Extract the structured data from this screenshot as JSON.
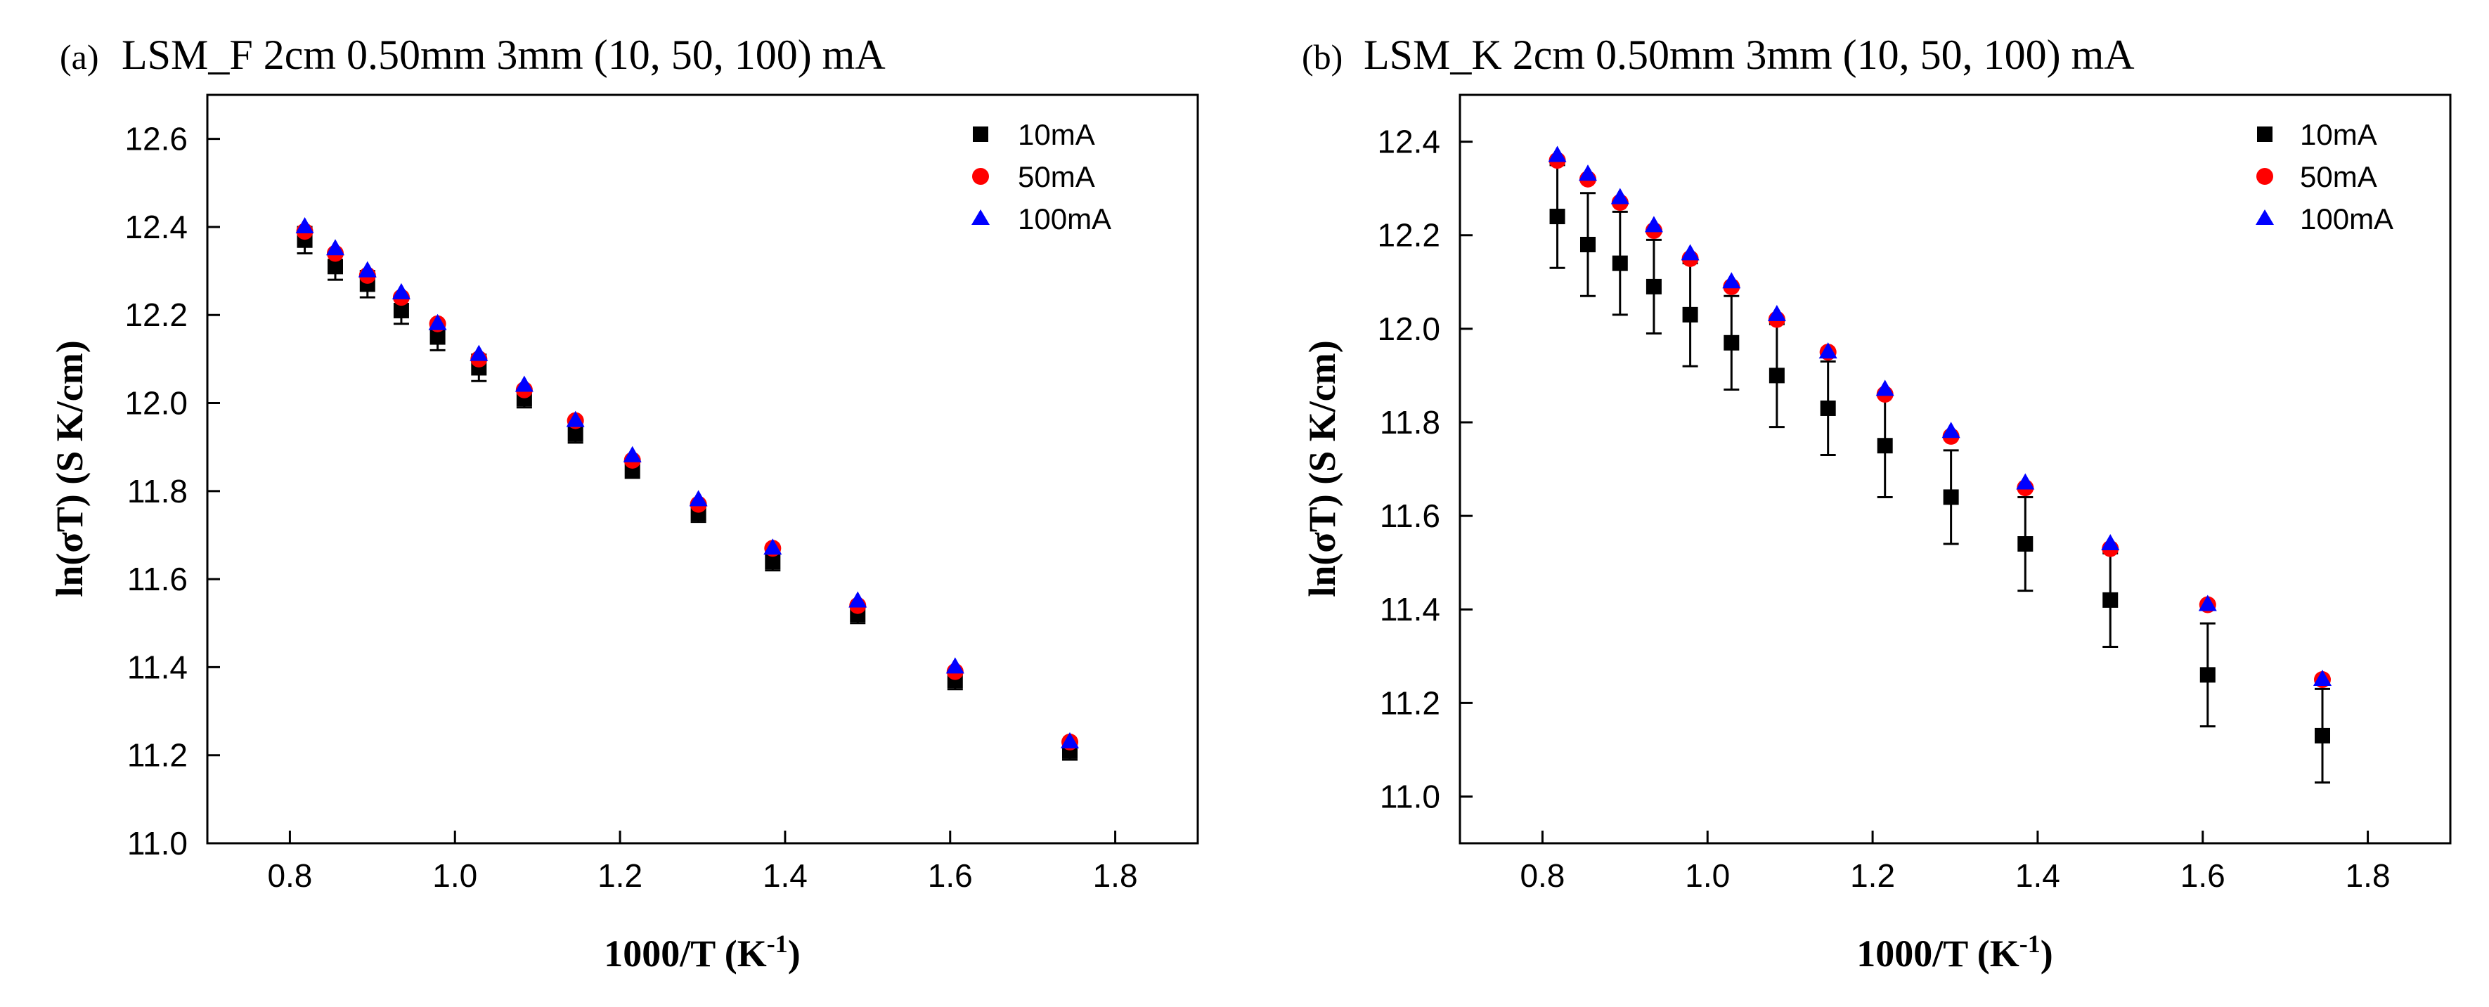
{
  "chart_data": [
    {
      "type": "scatter",
      "panel_label": "(a)",
      "title": "LSM_F 2cm 0.50mm 3mm (10, 50, 100) mA",
      "xlabel": "1000/T (K",
      "xlabel_sup": "-1",
      "xlabel_end": ")",
      "ylabel": "ln(σT) (S K/cm)",
      "xlim": [
        0.7,
        1.9
      ],
      "ylim": [
        11.0,
        12.7
      ],
      "xticks": [
        0.8,
        1.0,
        1.2,
        1.4,
        1.6,
        1.8
      ],
      "xtick_labels": [
        "0.8",
        "1.0",
        "1.2",
        "1.4",
        "1.6",
        "1.8"
      ],
      "yticks": [
        11.0,
        11.2,
        11.4,
        11.6,
        11.8,
        12.0,
        12.2,
        12.4,
        12.6
      ],
      "ytick_labels": [
        "11.0",
        "11.2",
        "11.4",
        "11.6",
        "11.8",
        "12.0",
        "12.2",
        "12.4",
        "12.6"
      ],
      "legend_position": "top-right",
      "x": [
        0.818,
        0.855,
        0.894,
        0.935,
        0.979,
        1.029,
        1.084,
        1.146,
        1.215,
        1.295,
        1.385,
        1.488,
        1.606,
        1.745
      ],
      "series": [
        {
          "name": "10mA",
          "marker": "square",
          "color": "#000000",
          "values": [
            12.37,
            12.31,
            12.27,
            12.21,
            12.15,
            12.08,
            12.01,
            11.93,
            11.85,
            11.75,
            11.64,
            11.52,
            11.37,
            11.21
          ],
          "errors": [
            0.03,
            0.03,
            0.03,
            0.03,
            0.03,
            0.03,
            0.02,
            0.02,
            0.02,
            0.02,
            0.02,
            0.02,
            0.02,
            0.02
          ]
        },
        {
          "name": "50mA",
          "marker": "circle",
          "color": "#ff0000",
          "values": [
            12.39,
            12.34,
            12.29,
            12.24,
            12.18,
            12.1,
            12.03,
            11.96,
            11.87,
            11.77,
            11.67,
            11.54,
            11.39,
            11.23
          ],
          "errors": []
        },
        {
          "name": "100mA",
          "marker": "triangle",
          "color": "#0000ff",
          "values": [
            12.4,
            12.35,
            12.3,
            12.25,
            12.18,
            12.11,
            12.04,
            11.96,
            11.88,
            11.78,
            11.67,
            11.55,
            11.4,
            11.23
          ],
          "errors": []
        }
      ]
    },
    {
      "type": "scatter",
      "panel_label": "(b)",
      "title": "LSM_K 2cm 0.50mm 3mm (10, 50, 100) mA",
      "xlabel": "1000/T (K",
      "xlabel_sup": "-1",
      "xlabel_end": ")",
      "ylabel": "ln(σT) (S K/cm)",
      "xlim": [
        0.7,
        1.9
      ],
      "ylim": [
        10.9,
        12.5
      ],
      "xticks": [
        0.8,
        1.0,
        1.2,
        1.4,
        1.6,
        1.8
      ],
      "xtick_labels": [
        "0.8",
        "1.0",
        "1.2",
        "1.4",
        "1.6",
        "1.8"
      ],
      "yticks": [
        11.0,
        11.2,
        11.4,
        11.6,
        11.8,
        12.0,
        12.2,
        12.4
      ],
      "ytick_labels": [
        "11.0",
        "11.2",
        "11.4",
        "11.6",
        "11.8",
        "12.0",
        "12.2",
        "12.4"
      ],
      "legend_position": "top-right",
      "x": [
        0.818,
        0.855,
        0.894,
        0.935,
        0.979,
        1.029,
        1.084,
        1.146,
        1.215,
        1.295,
        1.385,
        1.488,
        1.606,
        1.745
      ],
      "series": [
        {
          "name": "10mA",
          "marker": "square",
          "color": "#000000",
          "values": [
            12.24,
            12.18,
            12.14,
            12.09,
            12.03,
            11.97,
            11.9,
            11.83,
            11.75,
            11.64,
            11.54,
            11.42,
            11.26,
            11.13
          ],
          "errors": [
            0.11,
            0.11,
            0.11,
            0.1,
            0.11,
            0.1,
            0.11,
            0.1,
            0.11,
            0.1,
            0.1,
            0.1,
            0.11,
            0.1
          ]
        },
        {
          "name": "50mA",
          "marker": "circle",
          "color": "#ff0000",
          "values": [
            12.36,
            12.32,
            12.27,
            12.21,
            12.15,
            12.09,
            12.02,
            11.95,
            11.86,
            11.77,
            11.66,
            11.53,
            11.41,
            11.25
          ],
          "errors": []
        },
        {
          "name": "100mA",
          "marker": "triangle",
          "color": "#0000ff",
          "values": [
            12.37,
            12.33,
            12.28,
            12.22,
            12.16,
            12.1,
            12.03,
            11.95,
            11.87,
            11.78,
            11.67,
            11.54,
            11.41,
            11.25
          ],
          "errors": []
        }
      ]
    }
  ]
}
